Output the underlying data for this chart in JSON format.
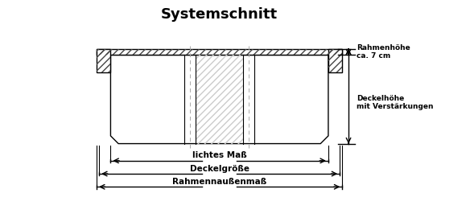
{
  "title": "Systemschnitt",
  "title_fontsize": 13,
  "label_rahmen": "Rahmenhöhe\nca. 7 cm",
  "label_deckel": "Deckelhöhe\nmit Verstärkungen",
  "label_lichtes": "lichtes Maß",
  "label_deckelgroesse": "Deckelgröße",
  "label_rahmenaussenmass": "Rahmennaußenmaß",
  "bg_color": "#ffffff",
  "line_color": "#000000",
  "hatch_color": "#444444",
  "dash_color": "#aaaaaa",
  "lw": 1.0
}
